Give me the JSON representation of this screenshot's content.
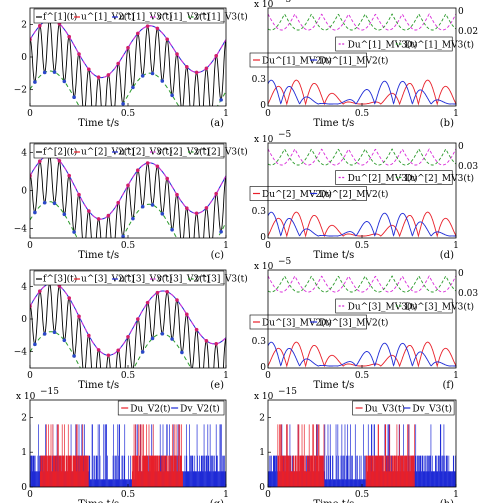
{
  "chart_data": [
    {
      "id": "a",
      "type": "line",
      "panel_label": "(a)",
      "xlabel": "Time t/s",
      "xlim": [
        0,
        1
      ],
      "ylim": [
        -3,
        3
      ],
      "xticks": [
        "0",
        "0.5",
        "1"
      ],
      "yticks": [
        "2",
        "0",
        "−2"
      ],
      "ytick_values": [
        2,
        0,
        -2
      ],
      "legend": [
        "—f^[1](t)",
        "—u^[1]_V2(t)",
        "—u^[1]_V3(t)",
        "- - v^[1]_V2(t)",
        "- - v^[1]_V3(t)"
      ],
      "signal": {
        "offset": 0.5,
        "amp": 1.6,
        "period": 0.5,
        "phase": 0.2,
        "env": 0.25,
        "env_period": 1.0,
        "osc_hz": 20
      }
    },
    {
      "id": "b",
      "type": "line",
      "panel_label": "(b)",
      "xlabel": "Time t/s",
      "scale_label": "x 10",
      "scale_exp": "−5",
      "xlim": [
        0,
        1
      ],
      "xticks": [
        "0",
        "0.5",
        "1"
      ],
      "right_ticks": [
        "0",
        "0.02"
      ],
      "left_ticks": [
        "0.3",
        "0"
      ],
      "legend_top": [
        "Du^[1]_MV3(t)",
        "Dv^[1]_MV3(t)"
      ],
      "legend_bottom": [
        "Du^[1]_MV2(t)",
        "Dv^[1]_MV2(t)"
      ]
    },
    {
      "id": "c",
      "type": "line",
      "panel_label": "(c)",
      "xlabel": "Time t/s",
      "xlim": [
        0,
        1
      ],
      "ylim": [
        -5,
        5
      ],
      "xticks": [
        "0",
        "0.5",
        "1"
      ],
      "yticks": [
        "4",
        "0",
        "−4"
      ],
      "ytick_values": [
        4,
        0,
        -4
      ],
      "legend": [
        "—f^[2](t)",
        "—u^[2]_V2(t)",
        "—u^[2]_V3(t)",
        "- - v^[2]_V2(t)",
        "- - v^[2]_V3(t)"
      ],
      "signal": {
        "offset": 0.3,
        "amp": 3.0,
        "period": 0.5,
        "phase": 0.25,
        "env": 0.5,
        "env_period": 1.0,
        "osc_hz": 20
      }
    },
    {
      "id": "d",
      "type": "line",
      "panel_label": "(d)",
      "xlabel": "Time t/s",
      "scale_label": "x 10",
      "scale_exp": "−5",
      "xlim": [
        0,
        1
      ],
      "xticks": [
        "0",
        "0.5",
        "1"
      ],
      "right_ticks": [
        "0",
        "0.03"
      ],
      "left_ticks": [
        "0.3",
        "0"
      ],
      "legend_top": [
        "Du^[2]_MV3(t)",
        "Dv^[2]_MV3(t)"
      ],
      "legend_bottom": [
        "Du^[2]_MV2(t)",
        "Dv^[2]_MV2(t)"
      ]
    },
    {
      "id": "e",
      "type": "line",
      "panel_label": "(e)",
      "xlabel": "Time t/s",
      "xlim": [
        0,
        1
      ],
      "ylim": [
        -6,
        6
      ],
      "xticks": [
        "0",
        "0.5",
        "1"
      ],
      "yticks": [
        "4",
        "0",
        "−4"
      ],
      "ytick_values": [
        4,
        0,
        -4
      ],
      "legend": [
        "—f^[3](t)",
        "—u^[3]_V2(t)",
        "—u^[3]_V3(t)",
        "- - v^[3]_V2(t)",
        "- - v^[3]_V3(t)"
      ],
      "signal": {
        "offset": 0.0,
        "amp": 3.8,
        "period": 0.55,
        "phase": 0.2,
        "env": 0.8,
        "env_period": 1.0,
        "osc_hz": 20
      }
    },
    {
      "id": "f",
      "type": "line",
      "panel_label": "(f)",
      "xlabel": "Time t/s",
      "scale_label": "x 10",
      "scale_exp": "−5",
      "xlim": [
        0,
        1
      ],
      "xticks": [
        "0",
        "0.5",
        "1"
      ],
      "right_ticks": [
        "0",
        "0.03"
      ],
      "left_ticks": [
        "0.3",
        "0"
      ],
      "legend_top": [
        "Du^[3]_MV3(t)",
        "Dv^[3]_MV3(t)"
      ],
      "legend_bottom": [
        "Du^[3]_MV2(t)",
        "Dv^[3]_MV2(t)"
      ]
    },
    {
      "id": "g",
      "type": "line",
      "panel_label": "(g)",
      "xlabel": "Time t/s",
      "scale_label": "x 10",
      "scale_exp": "−15",
      "xlim": [
        0,
        1
      ],
      "ylim": [
        0,
        2.5
      ],
      "xticks": [
        "0",
        "0.5",
        "1"
      ],
      "yticks": [
        "2",
        "1",
        "0"
      ],
      "ytick_values": [
        2,
        1,
        0
      ],
      "legend": [
        "Du_V2(t)",
        "Dv_V2(t)"
      ]
    },
    {
      "id": "h",
      "type": "line",
      "panel_label": "(h)",
      "xlabel": "Time t/s",
      "scale_label": "x 10",
      "scale_exp": "−15",
      "xlim": [
        0,
        1
      ],
      "ylim": [
        0,
        2.5
      ],
      "xticks": [
        "0",
        "0.5",
        "1"
      ],
      "yticks": [
        "2",
        "1",
        "0"
      ],
      "ytick_values": [
        2,
        1,
        0
      ],
      "legend": [
        "Du_V3(t)",
        "Dv_V3(t)"
      ]
    }
  ],
  "colors": {
    "black": "#000000",
    "red": "#e8202a",
    "blue": "#1f2bd6",
    "magenta": "#d82bd8",
    "green": "#2a9a2a",
    "marker_red": "#d21f6a",
    "marker_blue": "#2b47c9"
  }
}
